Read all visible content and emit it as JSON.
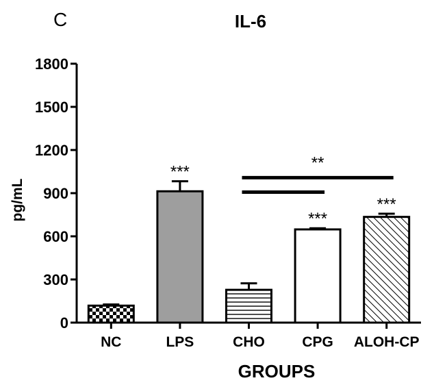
{
  "chart_data": {
    "type": "bar",
    "panel_letter": "C",
    "title": "IL-6",
    "xlabel": "GROUPS",
    "ylabel": "pg/mL",
    "ylim": [
      0,
      1800
    ],
    "yticks": [
      0,
      300,
      600,
      900,
      1200,
      1500,
      1800
    ],
    "categories": [
      "NC",
      "LPS",
      "CHO",
      "CPG",
      "ALOH-CP"
    ],
    "values": [
      118,
      913,
      228,
      648,
      735
    ],
    "errors": [
      8,
      70,
      45,
      8,
      22
    ],
    "significance": [
      "",
      "***",
      "",
      "***",
      "***"
    ],
    "fill_patterns": [
      "checkered",
      "solid-gray",
      "horizontal-lines",
      "solid-white",
      "diagonal-hatch"
    ],
    "comparisons": [
      {
        "from": "CHO",
        "to": "ALOH-CP",
        "label": "**",
        "y": 1008
      },
      {
        "from": "CHO",
        "to": "CPG",
        "label": "",
        "y": 907
      }
    ],
    "grid": false,
    "legend": "none",
    "colors": {
      "bar_edge": "#000000",
      "gray_fill": "#9e9e9e",
      "background": "#ffffff"
    }
  }
}
